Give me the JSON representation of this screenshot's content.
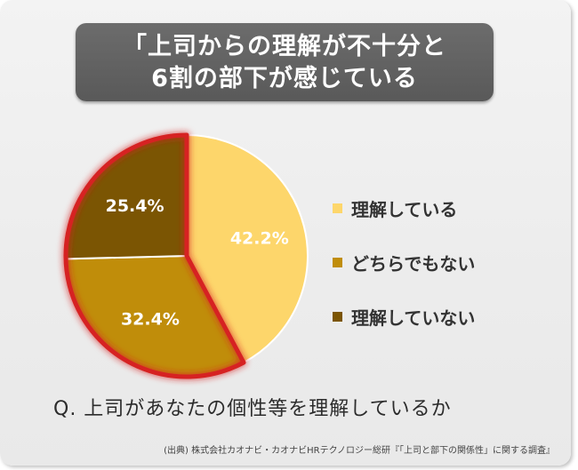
{
  "title": {
    "line1": "「上司からの理解が不十分と",
    "line2": "6割の部下が感じている"
  },
  "chart_data": {
    "type": "pie",
    "categories": [
      "理解している",
      "どちらでもない",
      "理解していない"
    ],
    "values": [
      42.2,
      32.4,
      25.4
    ],
    "value_labels": [
      "42.2%",
      "32.4%",
      "25.4%"
    ],
    "colors": [
      "#FDD66B",
      "#C08D0A",
      "#7B5503"
    ],
    "highlight_color": "#D62424",
    "legend_placement": "right"
  },
  "legend": [
    {
      "label": "理解している",
      "color": "#FDD66B"
    },
    {
      "label": "どちらでもない",
      "color": "#C08D0A"
    },
    {
      "label": "理解していない",
      "color": "#7B5503"
    }
  ],
  "question": "Q. 上司があなたの個性等を理解しているか",
  "source": "(出典) 株式会社カオナビ・カオナビHRテクノロジー総研『「上司と部下の関係性」に関する調査』"
}
